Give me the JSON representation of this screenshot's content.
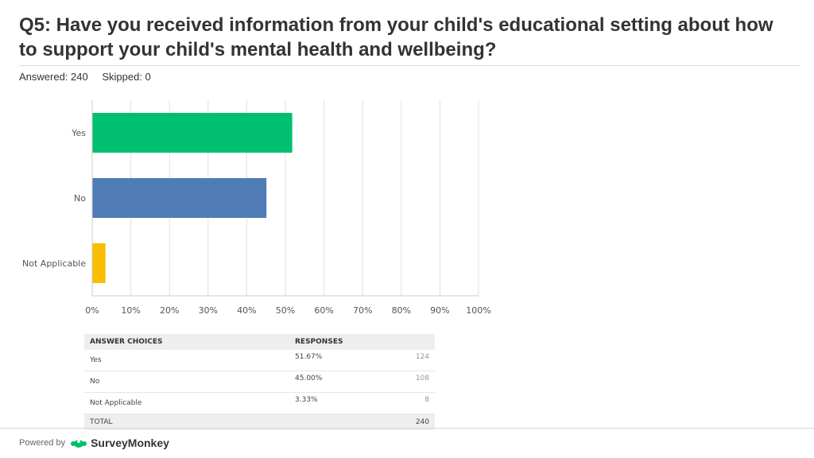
{
  "question": "Q5: Have you received information from your child's educational setting about how to support your child's mental health and wellbeing?",
  "answered_label": "Answered: 240",
  "skipped_label": "Skipped: 0",
  "colors": {
    "yes": "#00bf6f",
    "no": "#507cb6",
    "not_applicable": "#f9be00",
    "grid": "#e0e0e0",
    "axis": "#cccccc"
  },
  "chart_data": {
    "type": "bar",
    "orientation": "horizontal",
    "categories": [
      "Yes",
      "No",
      "Not Applicable"
    ],
    "values": [
      51.67,
      45.0,
      3.33
    ],
    "xlim": [
      0,
      100
    ],
    "x_ticks": [
      "0%",
      "10%",
      "20%",
      "30%",
      "40%",
      "50%",
      "60%",
      "70%",
      "80%",
      "90%",
      "100%"
    ],
    "grid": true
  },
  "table": {
    "headers": [
      "ANSWER CHOICES",
      "RESPONSES"
    ],
    "rows": [
      {
        "choice": "Yes",
        "percent": "51.67%",
        "count": "124"
      },
      {
        "choice": "No",
        "percent": "45.00%",
        "count": "108"
      },
      {
        "choice": "Not Applicable",
        "percent": "3.33%",
        "count": "8"
      }
    ],
    "total_label": "TOTAL",
    "total_count": "240"
  },
  "footer": {
    "powered_by": "Powered by",
    "brand": "SurveyMonkey"
  }
}
